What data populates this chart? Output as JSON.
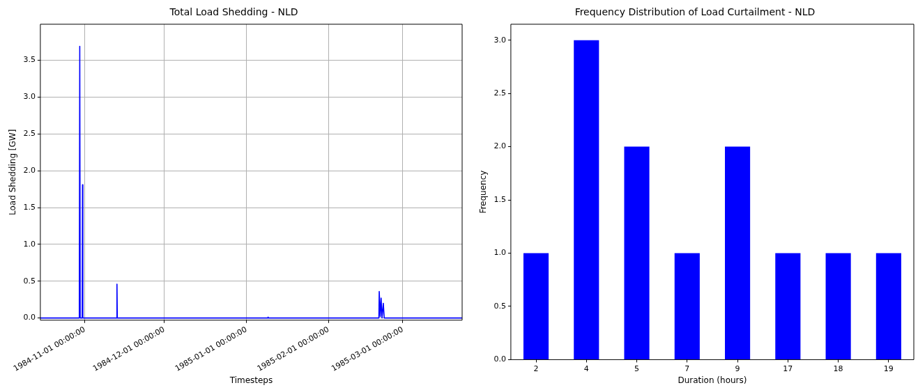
{
  "chart_data": [
    {
      "type": "line",
      "title": "Total Load Shedding - NLD",
      "xlabel": "Timesteps",
      "ylabel": "Load Shedding [GW]",
      "grid": true,
      "legend": false,
      "marker": "none",
      "line_style": "solid",
      "x": [
        "1984-10-15T05:00",
        "1984-10-29T22:00",
        "1984-10-30T02:00",
        "1984-10-30T06:00",
        "1984-10-31T00:00",
        "1984-10-31T03:00",
        "1984-10-31T06:00",
        "1984-11-13T00:00",
        "1984-11-13T03:00",
        "1984-11-13T06:00",
        "1985-01-09T00:00",
        "1985-01-09T03:00",
        "1985-01-09T06:00",
        "1985-02-20T00:00",
        "1985-02-20T03:00",
        "1985-02-20T12:00",
        "1985-02-20T20:00",
        "1985-02-21T04:00",
        "1985-02-21T16:00",
        "1985-02-22T00:00",
        "1985-03-23T10:00"
      ],
      "series": [
        {
          "color": "#0000ff",
          "values": [
            0,
            0,
            3.69,
            0,
            0,
            1.81,
            0,
            0,
            0.46,
            0,
            0,
            0.01,
            0,
            0,
            0.36,
            0.02,
            0.27,
            0,
            0.2,
            0,
            0
          ]
        }
      ],
      "xlim": [
        "1984-10-15T05:00",
        "1985-03-23T10:00"
      ],
      "xticks": [
        {
          "value": "1984-11-01",
          "label": "1984-11-01 00:00:00"
        },
        {
          "value": "1984-12-01",
          "label": "1984-12-01 00:00:00"
        },
        {
          "value": "1985-01-01",
          "label": "1985-01-01 00:00:00"
        },
        {
          "value": "1985-02-01",
          "label": "1985-02-01 00:00:00"
        },
        {
          "value": "1985-03-01",
          "label": "1985-03-01 00:00:00"
        }
      ],
      "ylim": [
        -0.03,
        3.99
      ],
      "yticks": [
        {
          "value": 0,
          "label": "0.0"
        },
        {
          "value": 0.5,
          "label": "0.5"
        },
        {
          "value": 1,
          "label": "1.0"
        },
        {
          "value": 1.5,
          "label": "1.5"
        },
        {
          "value": 2,
          "label": "2.0"
        },
        {
          "value": 2.5,
          "label": "2.5"
        },
        {
          "value": 3,
          "label": "3.0"
        },
        {
          "value": 3.5,
          "label": "3.5"
        }
      ]
    },
    {
      "type": "bar",
      "title": "Frequency Distribution of Load Curtailment - NLD",
      "xlabel": "Duration (hours)",
      "ylabel": "Frequency",
      "grid": false,
      "legend": false,
      "categories": [
        "2",
        "4",
        "5",
        "7",
        "9",
        "17",
        "18",
        "19"
      ],
      "series": [
        {
          "color": "#0000ff",
          "values": [
            1,
            3,
            2,
            1,
            2,
            1,
            1,
            1
          ]
        }
      ],
      "ylim": [
        0,
        3.15
      ],
      "yticks": [
        {
          "value": 0,
          "label": "0.0"
        },
        {
          "value": 0.5,
          "label": "0.5"
        },
        {
          "value": 1,
          "label": "1.0"
        },
        {
          "value": 1.5,
          "label": "1.5"
        },
        {
          "value": 2,
          "label": "2.0"
        },
        {
          "value": 2.5,
          "label": "2.5"
        },
        {
          "value": 3,
          "label": "3.0"
        }
      ]
    }
  ]
}
